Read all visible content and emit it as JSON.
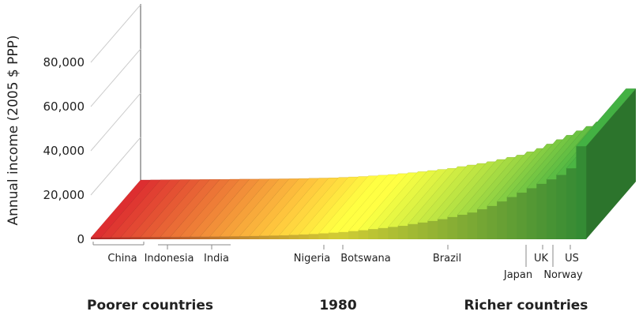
{
  "chart_data": {
    "type": "bar3d",
    "y_label": "Annual income (2005 $ PPP)",
    "ylim": [
      0,
      80000
    ],
    "yticks": [
      0,
      {
        "value": 20000,
        "label": "20,000"
      },
      {
        "value": 40000,
        "label": "40,000"
      },
      {
        "value": 60000,
        "label": "60,000"
      },
      {
        "value": 80000,
        "label": "80,000"
      }
    ],
    "values": [
      700,
      750,
      800,
      850,
      900,
      900,
      950,
      1000,
      1000,
      1050,
      1100,
      1100,
      1150,
      1200,
      1250,
      1300,
      1400,
      1500,
      1600,
      1700,
      1900,
      2100,
      2300,
      2600,
      2900,
      3200,
      3600,
      4000,
      4500,
      5000,
      5500,
      6000,
      6800,
      7500,
      8200,
      9000,
      10000,
      11000,
      12000,
      13500,
      15000,
      17000,
      19000,
      21000,
      23000,
      25000,
      27000,
      29000,
      32000,
      42000
    ],
    "colors": [
      "#c0282a",
      "#e9e43a",
      "#3a9a3a"
    ],
    "annotations": [
      "China",
      "Indonesia",
      "India",
      "Nigeria",
      "Botswana",
      "Brazil",
      "Japan",
      "UK",
      "Norway",
      "US"
    ],
    "footer": [
      "Poorer countries",
      "1980",
      "Richer countries"
    ]
  }
}
